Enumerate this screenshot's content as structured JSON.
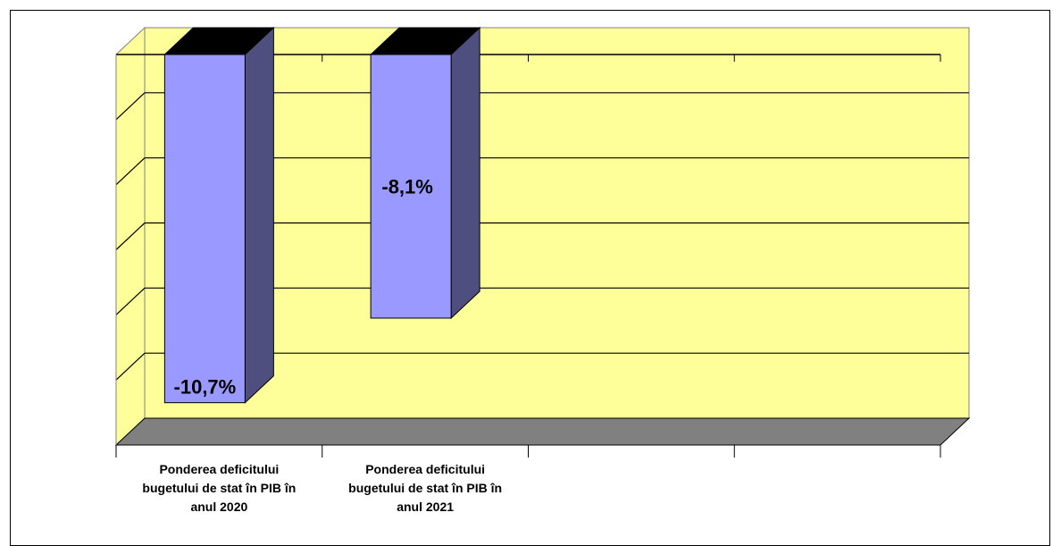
{
  "chart_data": {
    "type": "bar",
    "style": "3d-column",
    "categories": [
      [
        "Ponderea deficitului",
        "bugetului de stat în PIB în",
        "anul 2020"
      ],
      [
        "Ponderea deficitului",
        "bugetului de stat în PIB în",
        "anul 2021"
      ]
    ],
    "values": [
      -10.7,
      -8.1
    ],
    "data_labels": [
      "-10,7%",
      "-8,1%"
    ],
    "ylim": [
      -12,
      0
    ],
    "gridlines": true,
    "category_slots": 4,
    "colors": {
      "wall": "#ffff99",
      "floor": "#808080",
      "bar_front": "#9999ff",
      "bar_side": "#4f4f7f",
      "bar_top": "#000000",
      "grid": "#000000"
    }
  }
}
